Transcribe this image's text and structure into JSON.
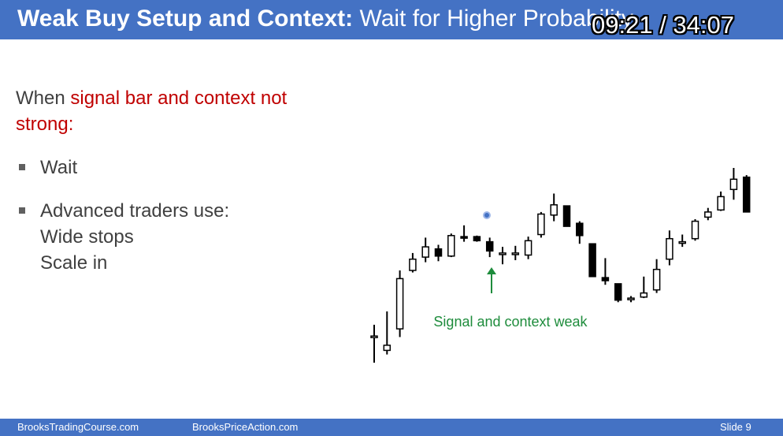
{
  "header": {
    "title_bold": "Weak Buy Setup and Context:",
    "title_rest": " Wait for Higher Probability",
    "timer": "09:21 / 34:07"
  },
  "content": {
    "intro_1": "When ",
    "intro_red": "signal bar and context not strong:",
    "bullets": [
      {
        "lines": [
          "Wait"
        ]
      },
      {
        "lines": [
          "Advanced traders use:",
          "Wide stops",
          "Scale in"
        ]
      }
    ]
  },
  "chart_data": {
    "type": "candlestick",
    "annotation": "Signal and context weak",
    "colors": {
      "bull_body": "#ffffff",
      "bear_body": "#000000",
      "annotation": "#1e8c3c"
    },
    "candles": [
      {
        "o": 305,
        "h": 317,
        "l": 280,
        "c": 306
      },
      {
        "o": 292,
        "h": 330,
        "l": 288,
        "c": 297
      },
      {
        "o": 313,
        "h": 370,
        "l": 305,
        "c": 362
      },
      {
        "o": 370,
        "h": 387,
        "l": 368,
        "c": 381
      },
      {
        "o": 383,
        "h": 402,
        "l": 378,
        "c": 393
      },
      {
        "o": 391,
        "h": 395,
        "l": 379,
        "c": 384
      },
      {
        "o": 384,
        "h": 406,
        "l": 383,
        "c": 404
      },
      {
        "o": 403,
        "h": 414,
        "l": 398,
        "c": 402
      },
      {
        "o": 403,
        "h": 404,
        "l": 398,
        "c": 399
      },
      {
        "o": 398,
        "h": 402,
        "l": 383,
        "c": 389
      },
      {
        "o": 387,
        "h": 393,
        "l": 376,
        "c": 387
      },
      {
        "o": 387,
        "h": 394,
        "l": 380,
        "c": 387
      },
      {
        "o": 385,
        "h": 403,
        "l": 381,
        "c": 399
      },
      {
        "o": 405,
        "h": 427,
        "l": 402,
        "c": 425
      },
      {
        "o": 424,
        "h": 445,
        "l": 418,
        "c": 434
      },
      {
        "o": 433,
        "h": 433,
        "l": 413,
        "c": 413
      },
      {
        "o": 416,
        "h": 418,
        "l": 396,
        "c": 404
      },
      {
        "o": 396,
        "h": 396,
        "l": 364,
        "c": 364
      },
      {
        "o": 363,
        "h": 382,
        "l": 356,
        "c": 360
      },
      {
        "o": 357,
        "h": 357,
        "l": 339,
        "c": 341
      },
      {
        "o": 342,
        "h": 345,
        "l": 339,
        "c": 343
      },
      {
        "o": 344,
        "h": 364,
        "l": 343,
        "c": 348
      },
      {
        "o": 351,
        "h": 381,
        "l": 348,
        "c": 371
      },
      {
        "o": 381,
        "h": 409,
        "l": 375,
        "c": 401
      },
      {
        "o": 398,
        "h": 405,
        "l": 393,
        "c": 398
      },
      {
        "o": 401,
        "h": 420,
        "l": 399,
        "c": 418
      },
      {
        "o": 422,
        "h": 431,
        "l": 419,
        "c": 427
      },
      {
        "o": 429,
        "h": 447,
        "l": 428,
        "c": 442
      },
      {
        "o": 449,
        "h": 470,
        "l": 439,
        "c": 459
      },
      {
        "o": 461,
        "h": 463,
        "l": 427,
        "c": 427
      }
    ]
  },
  "footer": {
    "left": "BrooksTradingCourse.com",
    "middle": "BrooksPriceAction.com",
    "right": "Slide  9"
  }
}
